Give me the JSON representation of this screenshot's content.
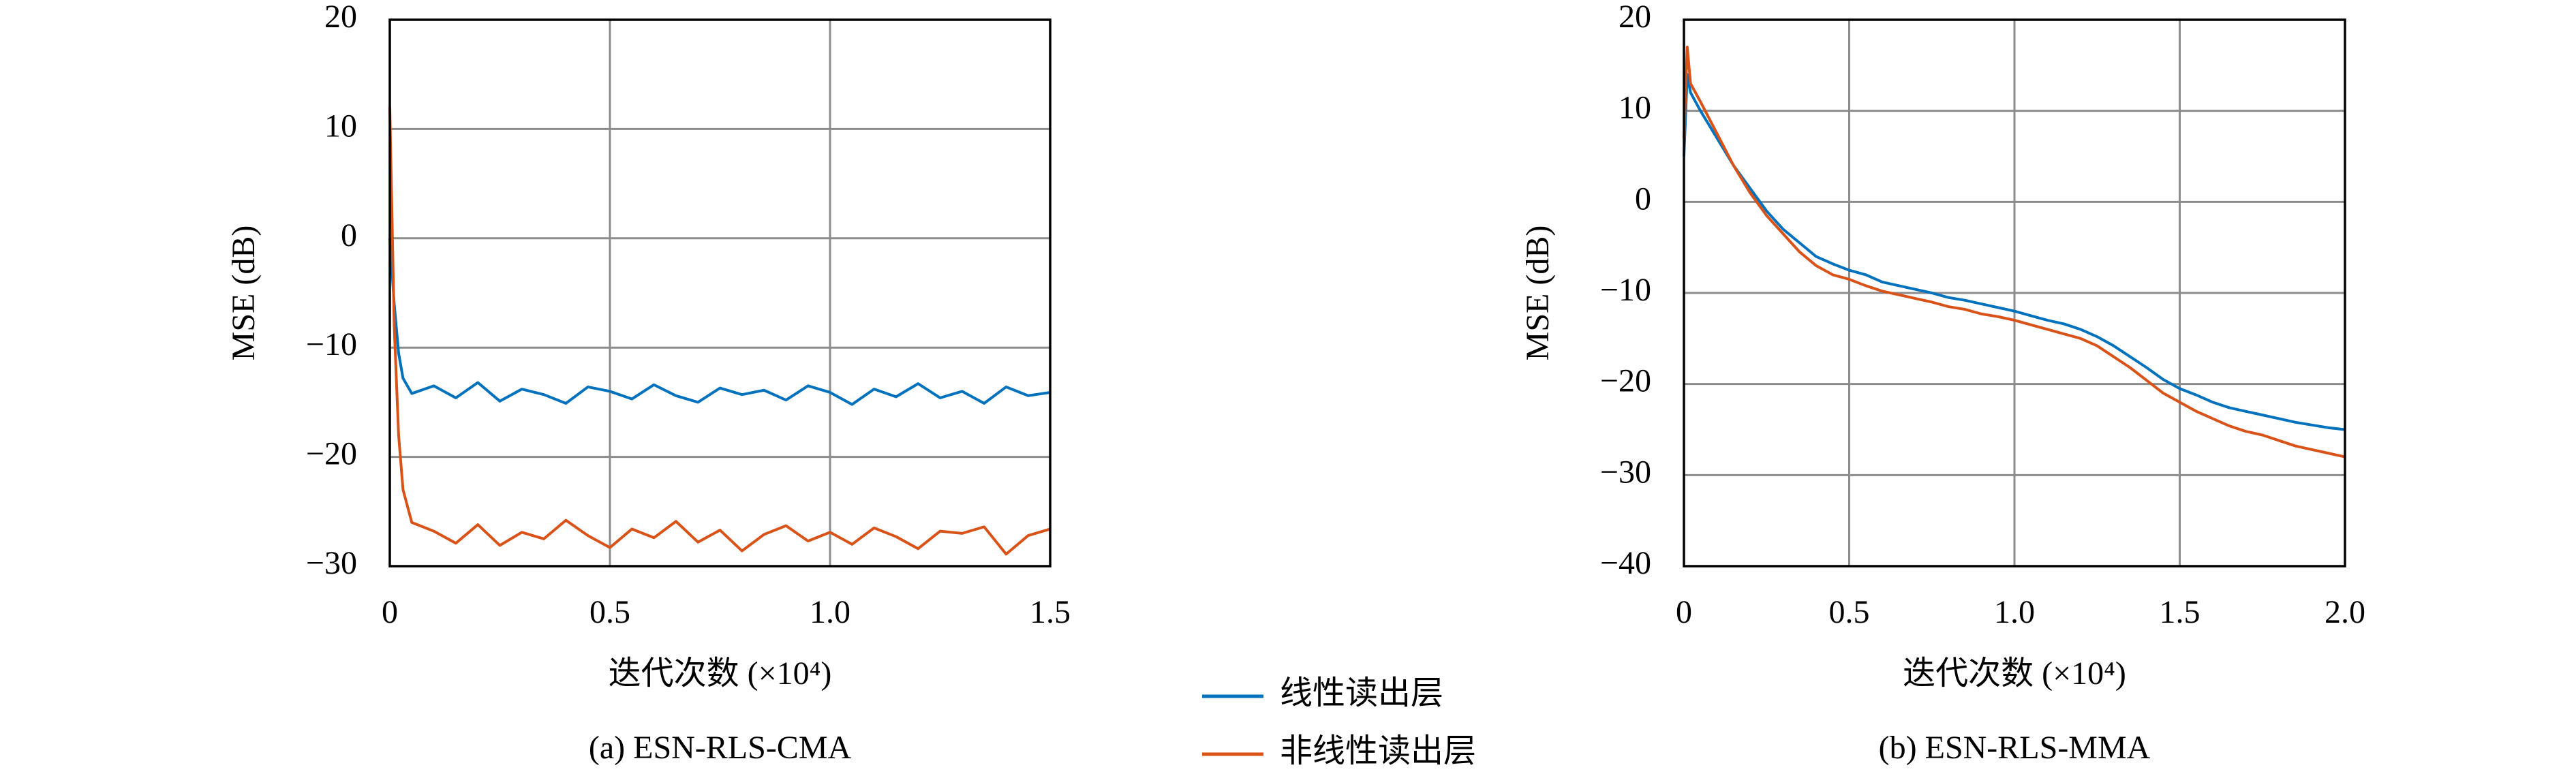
{
  "chart_data": [
    {
      "type": "line",
      "title": "(a) ESN-RLS-CMA",
      "xlabel": "迭代次数 (×10⁴)",
      "ylabel": "MSE (dB)",
      "xlim": [
        0,
        1.5
      ],
      "xticks": [
        0,
        0.5,
        {
          "value": 1,
          "label": "1.0"
        },
        1.5
      ],
      "ylim": [
        -30,
        20
      ],
      "yticks": [
        {
          "value": -30,
          "label": "−30"
        },
        {
          "value": -20,
          "label": "−20"
        },
        {
          "value": -10,
          "label": "−10"
        },
        0,
        10,
        20
      ],
      "grid": true,
      "x": [
        0,
        0.01,
        0.02,
        0.03,
        0.05,
        0.1,
        0.15,
        0.2,
        0.25,
        0.3,
        0.35,
        0.4,
        0.45,
        0.5,
        0.55,
        0.6,
        0.65,
        0.7,
        0.75,
        0.8,
        0.85,
        0.9,
        0.95,
        1.0,
        1.05,
        1.1,
        1.15,
        1.2,
        1.25,
        1.3,
        1.35,
        1.4,
        1.45,
        1.5
      ],
      "series": [
        {
          "name": "线性读出层",
          "color": "#0072bd",
          "values": [
            0,
            -6,
            -10.5,
            -12.8,
            -14.2,
            -13.5,
            -14.6,
            -13.2,
            -14.9,
            -13.8,
            -14.3,
            -15.1,
            -13.6,
            -14.0,
            -14.7,
            -13.4,
            -14.4,
            -15.0,
            -13.7,
            -14.3,
            -13.9,
            -14.8,
            -13.5,
            -14.1,
            -15.2,
            -13.8,
            -14.5,
            -13.3,
            -14.6,
            -14.0,
            -15.1,
            -13.6,
            -14.4,
            -14.1
          ]
        },
        {
          "name": "非线性读出层",
          "color": "#d95319",
          "values": [
            12,
            -8,
            -18,
            -23,
            -26,
            -26.8,
            -27.9,
            -26.2,
            -28.1,
            -26.9,
            -27.5,
            -25.8,
            -27.2,
            -28.3,
            -26.6,
            -27.4,
            -25.9,
            -27.8,
            -26.7,
            -28.6,
            -27.1,
            -26.3,
            -27.7,
            -26.9,
            -28.0,
            -26.5,
            -27.3,
            -28.4,
            -26.8,
            -27.0,
            -26.4,
            -28.9,
            -27.2,
            -26.6
          ]
        }
      ]
    },
    {
      "type": "line",
      "title": "(b) ESN-RLS-MMA",
      "xlabel": "迭代次数 (×10⁴)",
      "ylabel": "MSE (dB)",
      "xlim": [
        0,
        2
      ],
      "xticks": [
        0,
        0.5,
        {
          "value": 1,
          "label": "1.0"
        },
        1.5,
        {
          "value": 2,
          "label": "2.0"
        }
      ],
      "ylim": [
        -40,
        20
      ],
      "yticks": [
        {
          "value": -40,
          "label": "−40"
        },
        {
          "value": -30,
          "label": "−30"
        },
        {
          "value": -20,
          "label": "−20"
        },
        {
          "value": -10,
          "label": "−10"
        },
        0,
        10,
        20
      ],
      "grid": true,
      "x": [
        0,
        0.01,
        0.02,
        0.05,
        0.1,
        0.15,
        0.2,
        0.25,
        0.3,
        0.35,
        0.4,
        0.45,
        0.5,
        0.55,
        0.6,
        0.65,
        0.7,
        0.75,
        0.8,
        0.85,
        0.9,
        0.95,
        1.0,
        1.05,
        1.1,
        1.15,
        1.2,
        1.25,
        1.3,
        1.35,
        1.4,
        1.45,
        1.5,
        1.55,
        1.6,
        1.65,
        1.7,
        1.75,
        1.8,
        1.85,
        1.9,
        1.95,
        2.0
      ],
      "series": [
        {
          "color": "#0072bd",
          "values": [
            5,
            14,
            12,
            10,
            7,
            4,
            1.5,
            -1,
            -3,
            -4.5,
            -6,
            -6.8,
            -7.5,
            -8,
            -8.8,
            -9.2,
            -9.6,
            -10,
            -10.5,
            -10.8,
            -11.2,
            -11.6,
            -12,
            -12.5,
            -13,
            -13.4,
            -14,
            -14.8,
            -15.8,
            -17,
            -18.2,
            -19.5,
            -20.5,
            -21.2,
            -22,
            -22.6,
            -23,
            -23.4,
            -23.8,
            -24.2,
            -24.5,
            -24.8,
            -25
          ]
        },
        {
          "color": "#d95319",
          "values": [
            7,
            17,
            13,
            11,
            7.5,
            4,
            1,
            -1.5,
            -3.5,
            -5.5,
            -7,
            -8,
            -8.5,
            -9.2,
            -9.8,
            -10.2,
            -10.6,
            -11,
            -11.5,
            -11.8,
            -12.3,
            -12.6,
            -13,
            -13.5,
            -14,
            -14.5,
            -15,
            -15.8,
            -17,
            -18.2,
            -19.6,
            -21,
            -22,
            -23,
            -23.8,
            -24.6,
            -25.2,
            -25.6,
            -26.2,
            -26.8,
            -27.2,
            -27.6,
            -28
          ]
        }
      ]
    }
  ]
}
